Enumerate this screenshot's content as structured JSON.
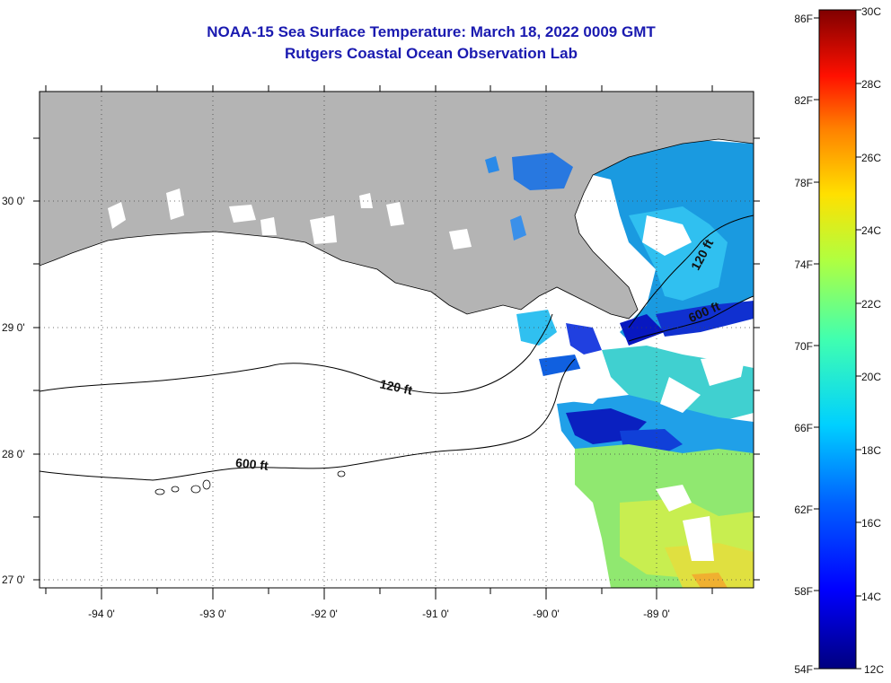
{
  "title": "NOAA-15 Sea Surface Temperature:  March 18, 2022 0009 GMT",
  "subtitle": "Rutgers Coastal Ocean Observation Lab",
  "map": {
    "lon_ticks": [
      "-94 0'",
      "-93 0'",
      "-92 0'",
      "-91 0'",
      "-90 0'",
      "-89 0'"
    ],
    "lat_ticks": [
      "30 0'",
      "29 0'",
      "28 0'",
      "27 0'"
    ],
    "contour_labels": [
      "120 ft",
      "600 ft",
      "120 ft",
      "600 ft"
    ],
    "land_color": "#b4b4b4",
    "cloud_color": "#ffffff"
  },
  "colorbar": {
    "f_labels": [
      "86F",
      "82F",
      "78F",
      "74F",
      "70F",
      "66F",
      "62F",
      "58F",
      "54F"
    ],
    "c_labels": [
      "30C",
      "28C",
      "26C",
      "24C",
      "22C",
      "20C",
      "18C",
      "16C",
      "14C",
      "12C"
    ],
    "colors": [
      "#000080",
      "#0000ff",
      "#0080ff",
      "#00ffff",
      "#80ff80",
      "#ffff00",
      "#ff8000",
      "#ff0000",
      "#800000"
    ]
  }
}
